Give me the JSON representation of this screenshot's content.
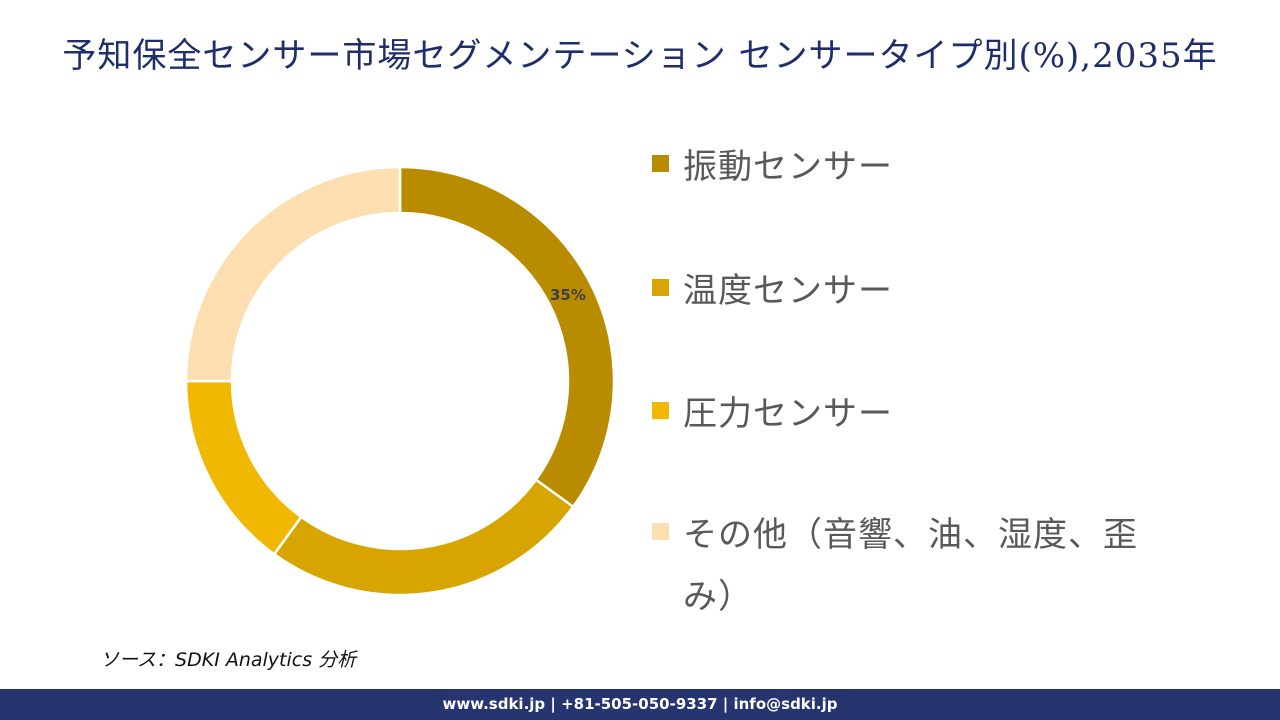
{
  "title": "予知保全センサー市場セグメンテーション センサータイプ別(%),2035年",
  "chart_data": {
    "type": "pie",
    "subtype": "donut",
    "title": "予知保全センサー市場セグメンテーション センサータイプ別(%),2035年",
    "categories": [
      "振動センサー",
      "温度センサー",
      "圧力センサー",
      "その他（音響、油、湿度、歪み）"
    ],
    "values": [
      35,
      25,
      15,
      25
    ],
    "colors": [
      "#b98c00",
      "#d8a500",
      "#f0b800",
      "#fddeb0"
    ],
    "data_labels": [
      "35%",
      "",
      "",
      ""
    ],
    "start_angle_deg": 0,
    "direction": "clockwise",
    "legend_position": "right",
    "unit": "%"
  },
  "legend": {
    "items": [
      {
        "label": "振動センサー",
        "color": "#b98c00"
      },
      {
        "label": "温度センサー",
        "color": "#d8a500"
      },
      {
        "label": "圧力センサー",
        "color": "#f0b800"
      },
      {
        "label": "その他（音響、油、湿度、歪み）",
        "color": "#fddeb0"
      }
    ]
  },
  "labels": {
    "vibration_pct": "35%"
  },
  "source": "ソース：SDKI Analytics 分析",
  "footer": {
    "text": "www.sdki.jp | +81-505-050-9337 | info@sdki.jp"
  }
}
